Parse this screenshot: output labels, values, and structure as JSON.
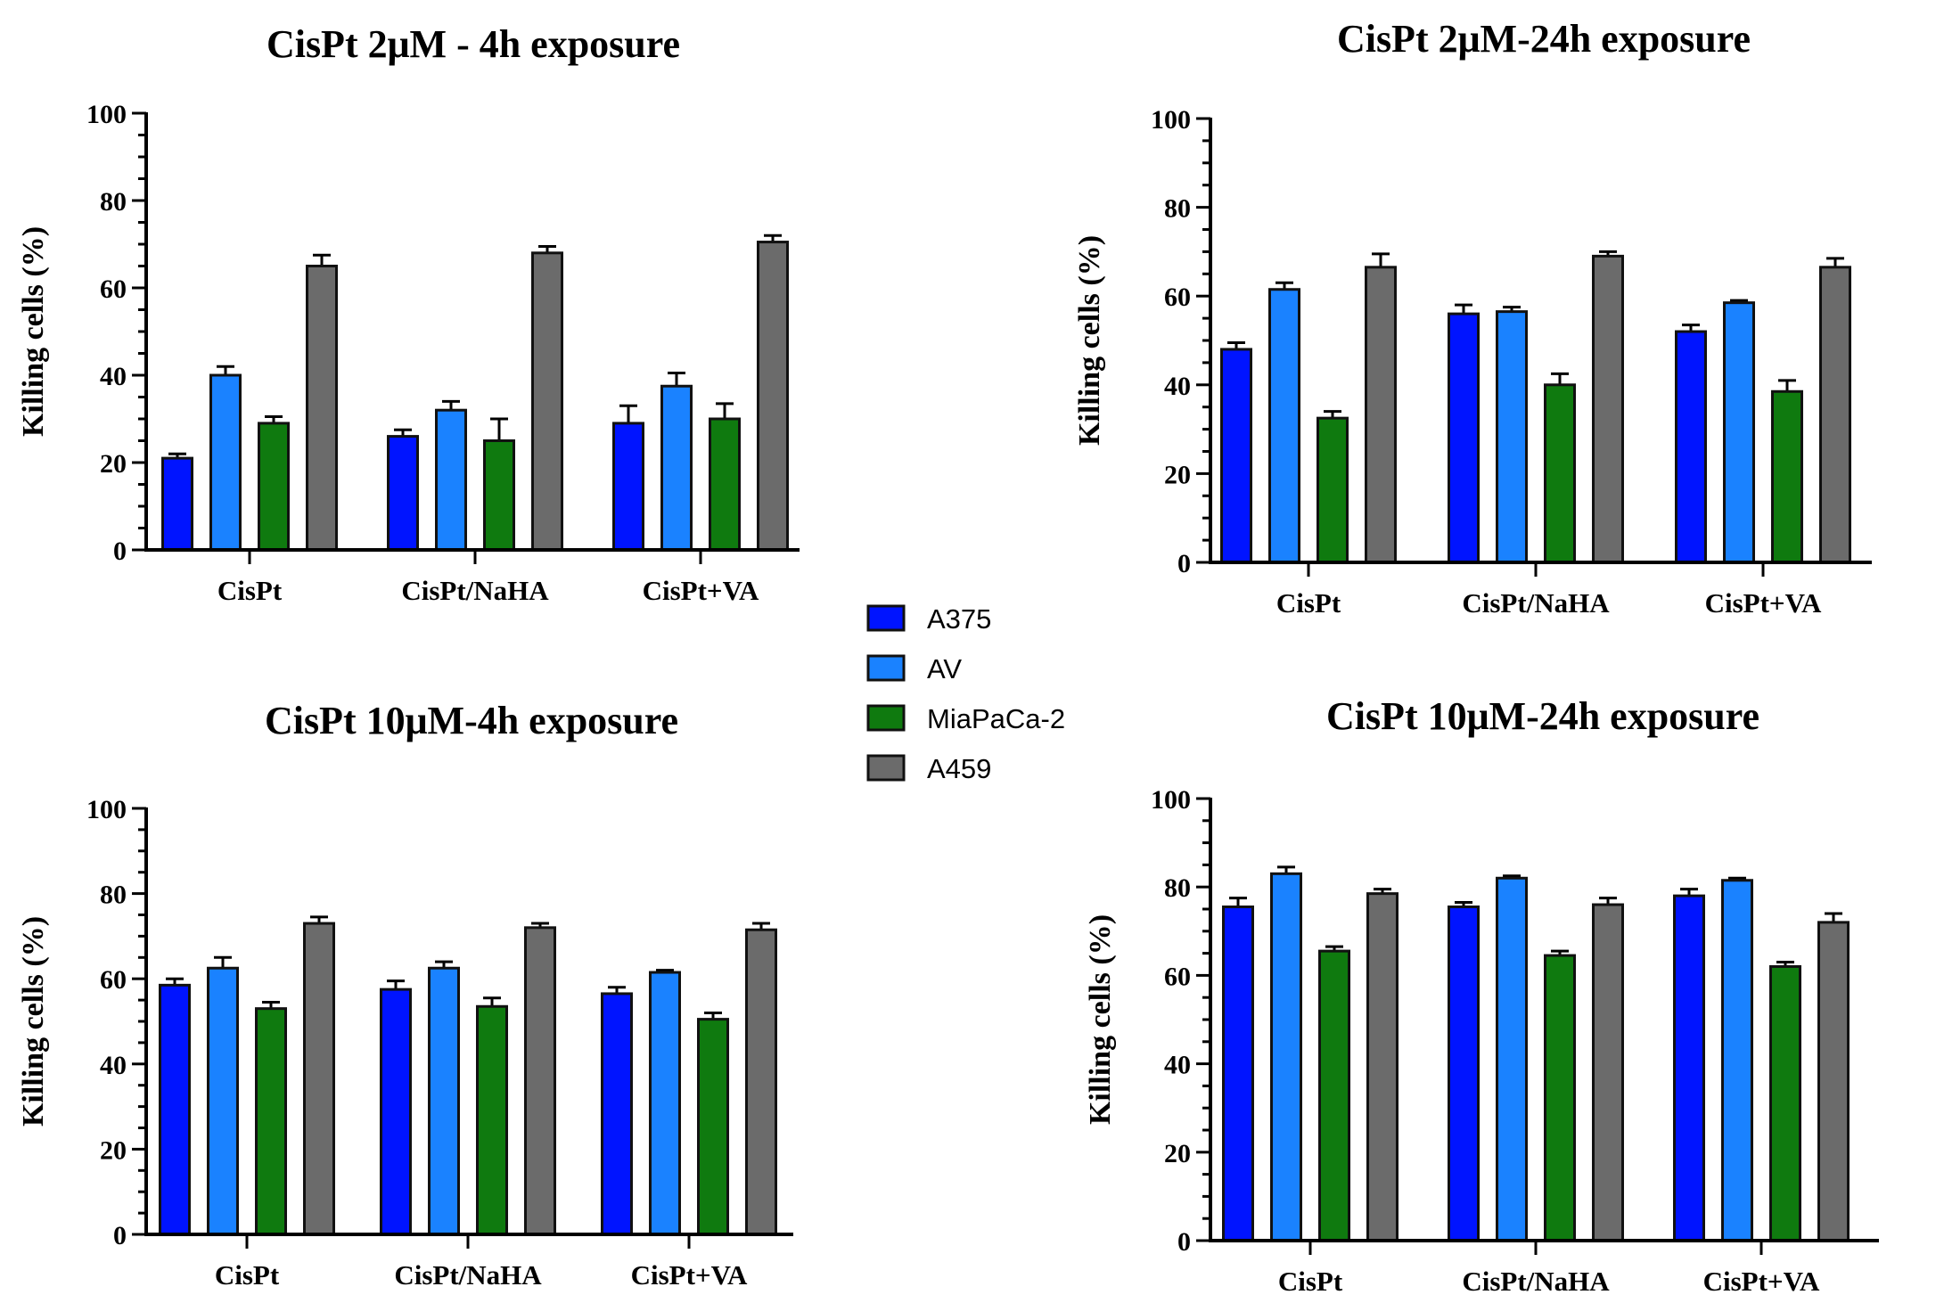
{
  "colors": {
    "A375": "#0014ff",
    "AV": "#1a82ff",
    "MiaPaCa-2": "#0f7a0f",
    "A459": "#6b6b6b"
  },
  "legend": {
    "entries": [
      "A375",
      "AV",
      "MiaPaCa-2",
      "A459"
    ]
  },
  "chart_data": [
    {
      "type": "bar",
      "title": "CisPt 2μM - 4h exposure",
      "ylabel": "Killing cells (%)",
      "ylim": [
        0,
        100
      ],
      "yticks": [
        0,
        20,
        40,
        60,
        80,
        100
      ],
      "categories": [
        "CisPt",
        "CisPt/NaHA",
        "CisPt+VA"
      ],
      "series": [
        {
          "name": "A375",
          "values": [
            21,
            26,
            29
          ],
          "errors": [
            1,
            1.5,
            4
          ]
        },
        {
          "name": "AV",
          "values": [
            40,
            32,
            37.5
          ],
          "errors": [
            2,
            2,
            3
          ]
        },
        {
          "name": "MiaPaCa-2",
          "values": [
            29,
            25,
            30
          ],
          "errors": [
            1.5,
            5,
            3.5
          ]
        },
        {
          "name": "A459",
          "values": [
            65,
            68,
            70.5
          ],
          "errors": [
            2.5,
            1.5,
            1.5
          ]
        }
      ]
    },
    {
      "type": "bar",
      "title": "CisPt 2μM-24h exposure",
      "ylabel": "Killing cells (%)",
      "ylim": [
        0,
        100
      ],
      "yticks": [
        0,
        20,
        40,
        60,
        80,
        100
      ],
      "categories": [
        "CisPt",
        "CisPt/NaHA",
        "CisPt+VA"
      ],
      "series": [
        {
          "name": "A375",
          "values": [
            48,
            56,
            52
          ],
          "errors": [
            1.5,
            2,
            1.5
          ]
        },
        {
          "name": "AV",
          "values": [
            61.5,
            56.5,
            58.5
          ],
          "errors": [
            1.5,
            1,
            0.5
          ]
        },
        {
          "name": "MiaPaCa-2",
          "values": [
            32.5,
            40,
            38.5
          ],
          "errors": [
            1.5,
            2.5,
            2.5
          ]
        },
        {
          "name": "A459",
          "values": [
            66.5,
            69,
            66.5
          ],
          "errors": [
            3,
            1,
            2
          ]
        }
      ]
    },
    {
      "type": "bar",
      "title": "CisPt 10μM-4h exposure",
      "ylabel": "Killing cells (%)",
      "ylim": [
        0,
        100
      ],
      "yticks": [
        0,
        20,
        40,
        60,
        80,
        100
      ],
      "categories": [
        "CisPt",
        "CisPt/NaHA",
        "CisPt+VA"
      ],
      "series": [
        {
          "name": "A375",
          "values": [
            58.5,
            57.5,
            56.5
          ],
          "errors": [
            1.5,
            2,
            1.5
          ]
        },
        {
          "name": "AV",
          "values": [
            62.5,
            62.5,
            61.5
          ],
          "errors": [
            2.5,
            1.5,
            0.5
          ]
        },
        {
          "name": "MiaPaCa-2",
          "values": [
            53,
            53.5,
            50.5
          ],
          "errors": [
            1.5,
            2,
            1.5
          ]
        },
        {
          "name": "A459",
          "values": [
            73,
            72,
            71.5
          ],
          "errors": [
            1.5,
            1,
            1.5
          ]
        }
      ]
    },
    {
      "type": "bar",
      "title": "CisPt 10μM-24h exposure",
      "ylabel": "Killing cells (%)",
      "ylim": [
        0,
        100
      ],
      "yticks": [
        0,
        20,
        40,
        60,
        80,
        100
      ],
      "categories": [
        "CisPt",
        "CisPt/NaHA",
        "CisPt+VA"
      ],
      "series": [
        {
          "name": "A375",
          "values": [
            75.5,
            75.5,
            78
          ],
          "errors": [
            2,
            1,
            1.5
          ]
        },
        {
          "name": "AV",
          "values": [
            83,
            82,
            81.5
          ],
          "errors": [
            1.5,
            0.5,
            0.5
          ]
        },
        {
          "name": "MiaPaCa-2",
          "values": [
            65.5,
            64.5,
            62
          ],
          "errors": [
            1,
            1,
            1
          ]
        },
        {
          "name": "A459",
          "values": [
            78.5,
            76,
            72
          ],
          "errors": [
            1,
            1.5,
            2
          ]
        }
      ]
    }
  ]
}
